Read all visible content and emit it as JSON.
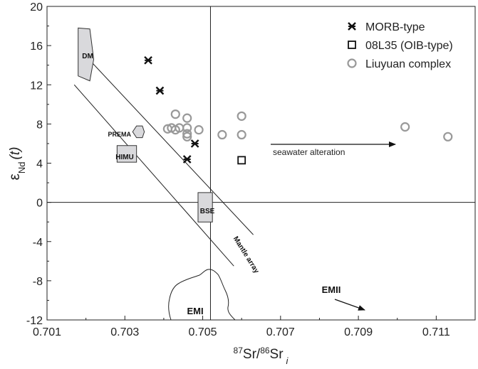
{
  "chart_data": {
    "type": "scatter",
    "xlabel": {
      "sup1": "87",
      "mid": "Sr/",
      "sup2": "86",
      "end": "Sr",
      "sub": "i"
    },
    "ylabel": {
      "base": "ε",
      "sub": "Nd",
      "paren": "(t)"
    },
    "xlim": [
      0.701,
      0.712
    ],
    "ylim": [
      -12,
      20
    ],
    "xticks": [
      "0.701",
      "0.703",
      "0.705",
      "0.707",
      "0.709",
      "0.711"
    ],
    "yticks": [
      "-12",
      "-8",
      "-4",
      "0",
      "4",
      "8",
      "12",
      "16",
      "20"
    ],
    "reference_lines": {
      "x": 0.7052,
      "y": 0
    },
    "series": [
      {
        "name": "MORB-type",
        "marker": "asterisk",
        "points": [
          [
            0.7036,
            14.5
          ],
          [
            0.7039,
            11.4
          ],
          [
            0.7048,
            6.0
          ],
          [
            0.7046,
            4.4
          ]
        ]
      },
      {
        "name": "08L35 (OIB-type)",
        "marker": "square",
        "points": [
          [
            0.706,
            4.3
          ]
        ]
      },
      {
        "name": "Liuyuan complex",
        "marker": "circle",
        "points": [
          [
            0.7043,
            9.0
          ],
          [
            0.7046,
            8.6
          ],
          [
            0.7041,
            7.5
          ],
          [
            0.7042,
            7.6
          ],
          [
            0.7043,
            7.4
          ],
          [
            0.7044,
            7.6
          ],
          [
            0.7046,
            7.6
          ],
          [
            0.7046,
            7.0
          ],
          [
            0.7046,
            6.7
          ],
          [
            0.7049,
            7.4
          ],
          [
            0.7055,
            6.9
          ],
          [
            0.706,
            8.8
          ],
          [
            0.706,
            6.9
          ],
          [
            0.7102,
            7.7
          ],
          [
            0.7113,
            6.7
          ]
        ]
      }
    ],
    "fields": [
      {
        "label": "DM",
        "polygon": [
          [
            0.7018,
            17.8
          ],
          [
            0.7021,
            17.7
          ],
          [
            0.7022,
            14.6
          ],
          [
            0.7021,
            12.4
          ],
          [
            0.7018,
            12.9
          ]
        ]
      },
      {
        "label": "PREMA",
        "polygon": [
          [
            0.7032,
            7.2
          ],
          [
            0.7033,
            7.8
          ],
          [
            0.70345,
            7.8
          ],
          [
            0.7035,
            7.2
          ],
          [
            0.70345,
            6.6
          ],
          [
            0.7033,
            6.6
          ]
        ]
      },
      {
        "label": "HIMU",
        "polygon": [
          [
            0.7028,
            5.8
          ],
          [
            0.7033,
            5.8
          ],
          [
            0.7033,
            4.1
          ],
          [
            0.7028,
            4.1
          ]
        ]
      },
      {
        "label": "BSE",
        "polygon": [
          [
            0.70488,
            1.0
          ],
          [
            0.70525,
            1.0
          ],
          [
            0.70525,
            -2.0
          ],
          [
            0.70488,
            -2.0
          ]
        ]
      }
    ],
    "mantle_array": {
      "label": "Mantle array",
      "lines": [
        [
          [
            0.7021,
            14.5
          ],
          [
            0.7063,
            -3.3
          ]
        ],
        [
          [
            0.7017,
            12.0
          ],
          [
            0.7058,
            -6.5
          ]
        ]
      ]
    },
    "emi": {
      "label": "EMI"
    },
    "emii": {
      "label": "EMII"
    },
    "seawater": {
      "label": "seawater alteration"
    }
  }
}
